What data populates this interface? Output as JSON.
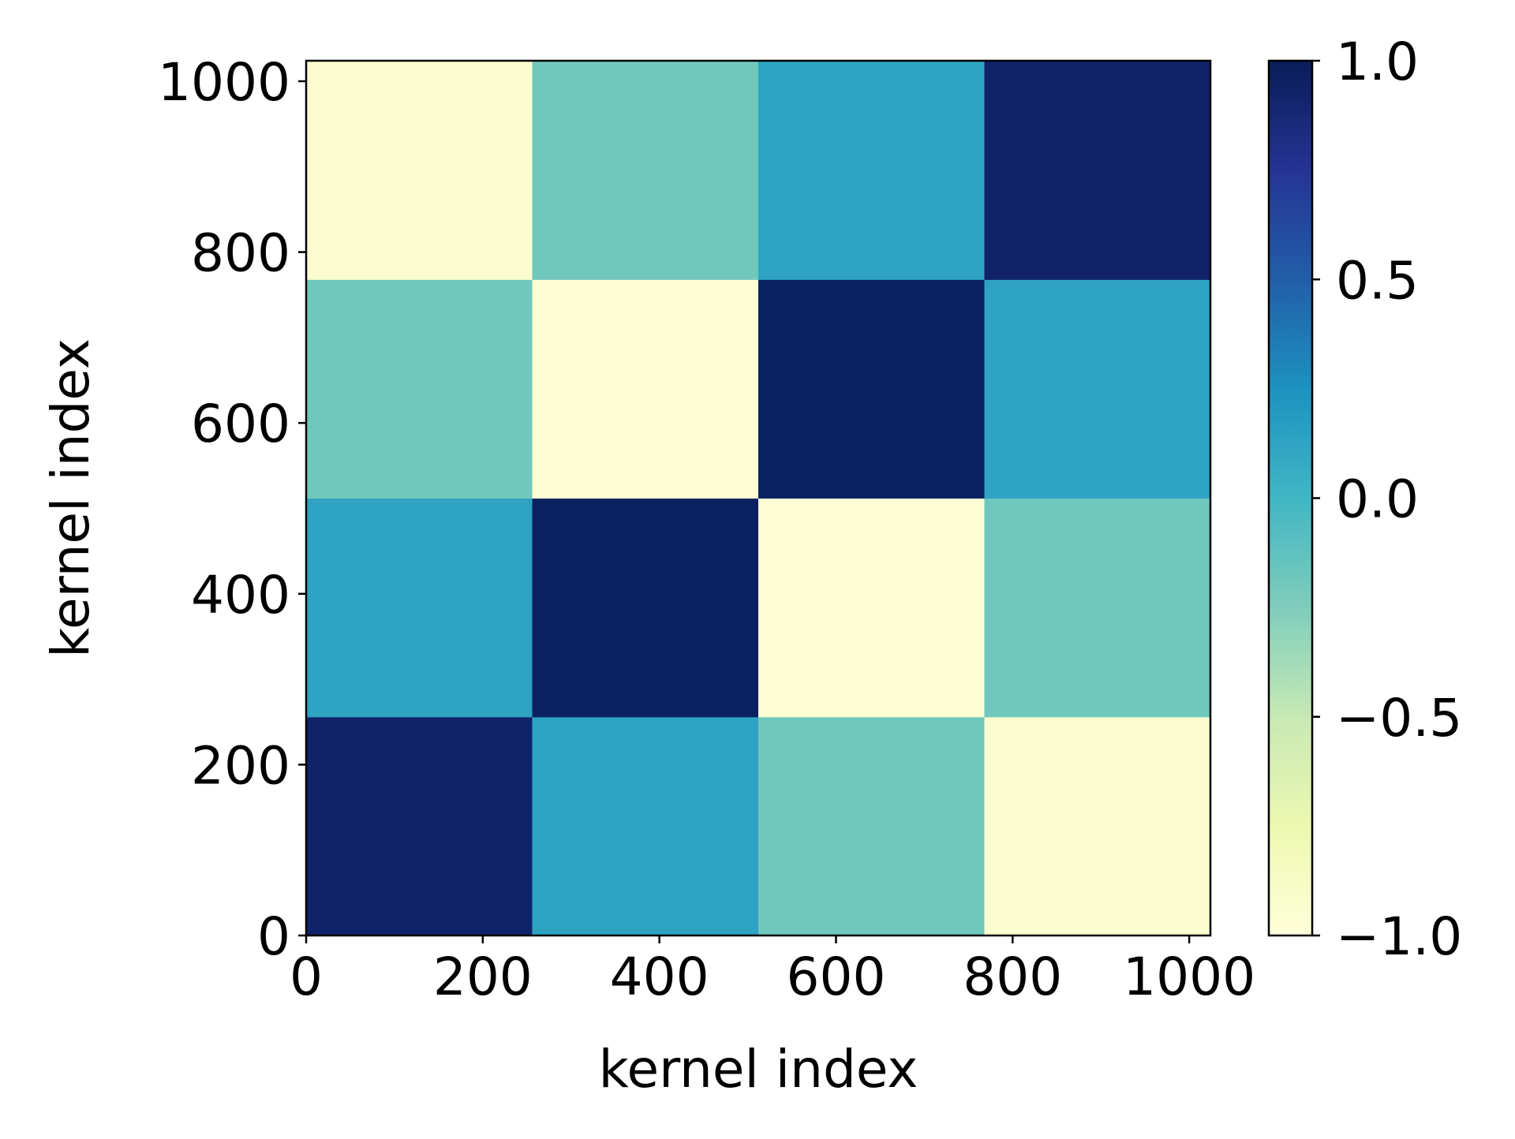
{
  "chart_data": {
    "type": "heatmap",
    "title": "",
    "xlabel": "kernel index",
    "ylabel": "kernel index",
    "xlim": [
      0,
      1024
    ],
    "ylim": [
      0,
      1024
    ],
    "x_ticks": [
      0,
      200,
      400,
      600,
      800,
      1000
    ],
    "y_ticks": [
      0,
      200,
      400,
      600,
      800,
      1000
    ],
    "colormap": "YlGnBu",
    "colorbar": {
      "range": [
        -1.0,
        1.0
      ],
      "ticks": [
        "1.0",
        "0.5",
        "0.0",
        "−0.5",
        "−1.0"
      ],
      "tick_values": [
        1.0,
        0.5,
        0.0,
        -0.5,
        -1.0
      ]
    },
    "block_boundaries": [
      0,
      256,
      512,
      768,
      1024
    ],
    "block_values": [
      [
        0.93,
        0.13,
        -0.19,
        -0.94
      ],
      [
        0.13,
        0.97,
        -0.97,
        -0.19
      ],
      [
        -0.19,
        -0.97,
        0.97,
        0.13
      ],
      [
        -0.94,
        -0.19,
        0.13,
        0.93
      ]
    ],
    "colors": {
      "low": "#ffffd9",
      "high": "#081d58"
    }
  }
}
